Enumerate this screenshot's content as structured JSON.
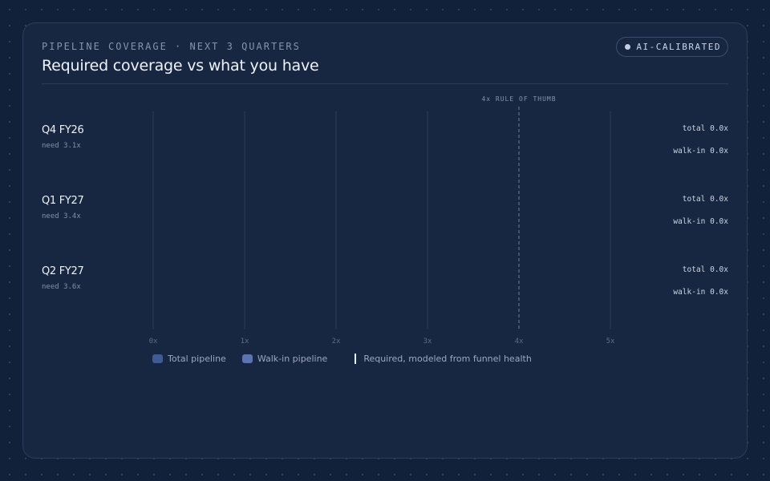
{
  "header": {
    "eyebrow": "PIPELINE COVERAGE · NEXT 3 QUARTERS",
    "title": "Required coverage vs what you have",
    "badge": "AI-CALIBRATED"
  },
  "colors": {
    "total_pipeline": "#3f5b92",
    "walkin_pipeline": "#5b74b0",
    "required_marker": "#e8edf5",
    "grid": "#2b3b56",
    "threshold": "#5f6f88"
  },
  "chart_data": {
    "type": "bar",
    "orientation": "horizontal",
    "categories": [
      "Q4 FY26",
      "Q1 FY27",
      "Q2 FY27"
    ],
    "need_labels": [
      "need 3.1x",
      "need 3.4x",
      "need 3.6x"
    ],
    "required": [
      3.1,
      3.4,
      3.6
    ],
    "series": [
      {
        "name": "Total pipeline",
        "values": [
          0.0,
          0.0,
          0.0
        ],
        "readout_labels": [
          "total 0.0x",
          "total 0.0x",
          "total 0.0x"
        ]
      },
      {
        "name": "Walk-in pipeline",
        "values": [
          0.0,
          0.0,
          0.0
        ],
        "readout_labels": [
          "walk-in 0.0x",
          "walk-in 0.0x",
          "walk-in 0.0x"
        ]
      }
    ],
    "xlim": [
      0,
      5
    ],
    "ticks": [
      "0x",
      "1x",
      "2x",
      "3x",
      "4x",
      "5x"
    ],
    "threshold": {
      "value": 4,
      "label": "4x RULE OF THUMB"
    },
    "legend": {
      "placement": "bottom-left",
      "total": "Total pipeline",
      "walkin": "Walk-in pipeline",
      "required": "Required, modeled from funnel health"
    },
    "grid": true
  }
}
